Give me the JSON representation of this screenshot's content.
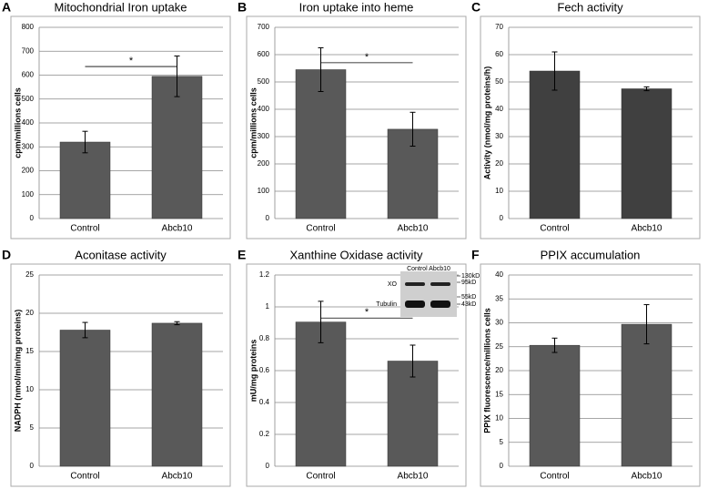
{
  "chart_data": [
    {
      "type": "bar",
      "panel": "A",
      "title": "Mitochondrial Iron uptake",
      "ylabel": "cpm/millions cells",
      "categories": [
        "Control",
        "Abcb10"
      ],
      "values": [
        320,
        595
      ],
      "errors": [
        45,
        85
      ],
      "color": "#595959",
      "ylim": [
        0,
        800
      ],
      "yticks": [
        0,
        100,
        200,
        300,
        400,
        500,
        600,
        700,
        800
      ],
      "grid": true,
      "significance": "*"
    },
    {
      "type": "bar",
      "panel": "B",
      "title": "Iron uptake into heme",
      "ylabel": "cpm/millions cells",
      "categories": [
        "Control",
        "Abcb10"
      ],
      "values": [
        545,
        327
      ],
      "errors": [
        80,
        62
      ],
      "color": "#595959",
      "ylim": [
        0,
        700
      ],
      "yticks": [
        0,
        100,
        200,
        300,
        400,
        500,
        600,
        700
      ],
      "grid": true,
      "significance": "*"
    },
    {
      "type": "bar",
      "panel": "C",
      "title": "Fech activity",
      "ylabel": "Activity (nmol/mg proteins/h)",
      "categories": [
        "Control",
        "Abcb10"
      ],
      "values": [
        54,
        47.5
      ],
      "errors": [
        7,
        0.7
      ],
      "color": "#404040",
      "ylim": [
        0,
        70
      ],
      "yticks": [
        0,
        10,
        20,
        30,
        40,
        50,
        60,
        70
      ],
      "grid": true
    },
    {
      "type": "bar",
      "panel": "D",
      "title": "Aconitase activity",
      "ylabel": "NADPH (nmol/min/mg proteins)",
      "categories": [
        "Control",
        "Abcb10"
      ],
      "values": [
        17.8,
        18.7
      ],
      "errors": [
        1,
        0.2
      ],
      "color": "#595959",
      "ylim": [
        0,
        25
      ],
      "yticks": [
        0,
        5,
        10,
        15,
        20,
        25
      ],
      "grid": true
    },
    {
      "type": "bar",
      "panel": "E",
      "title": "Xanthine Oxidase activity",
      "ylabel": "mU/mg proteins",
      "categories": [
        "Control",
        "Abcb10"
      ],
      "values": [
        0.905,
        0.66
      ],
      "errors": [
        0.13,
        0.1
      ],
      "color": "#595959",
      "ylim": [
        0,
        1.2
      ],
      "yticks": [
        0,
        0.2,
        0.4,
        0.6,
        0.8,
        1,
        1.2
      ],
      "grid": true,
      "significance": "*",
      "inset": {
        "header": "Control Abcb10",
        "labels": [
          "XO",
          "Tubulin"
        ],
        "markers": [
          "130kD",
          "95kD",
          "55kD",
          "43kD"
        ]
      }
    },
    {
      "type": "bar",
      "panel": "F",
      "title": "PPIX accumulation",
      "ylabel": "PPIX fluorescence/millions cells",
      "categories": [
        "Control",
        "Abcb10"
      ],
      "values": [
        25.3,
        29.7
      ],
      "errors": [
        1.5,
        4.1
      ],
      "color": "#595959",
      "ylim": [
        0,
        40
      ],
      "yticks": [
        0,
        5,
        10,
        15,
        20,
        25,
        30,
        35,
        40
      ],
      "grid": true
    }
  ]
}
